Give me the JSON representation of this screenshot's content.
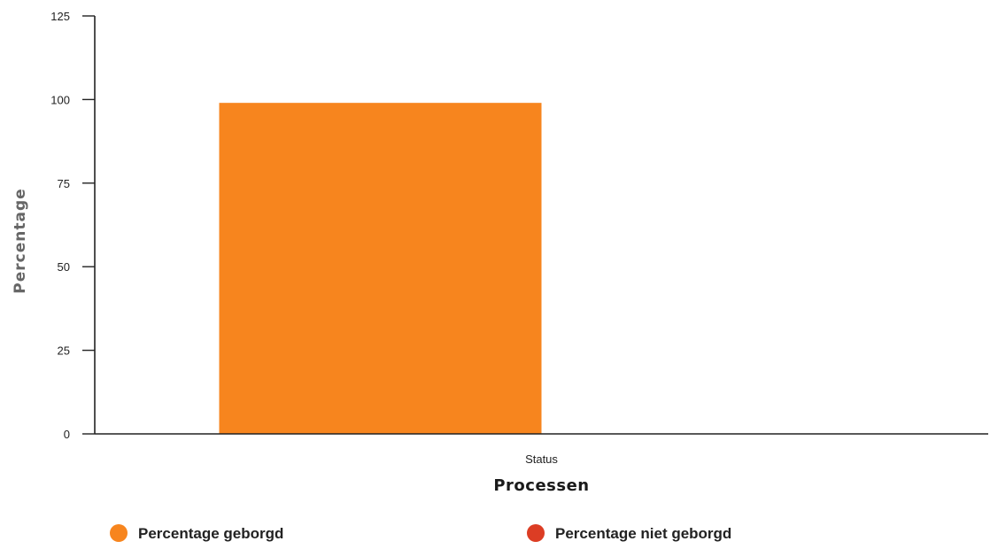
{
  "chart_data": {
    "type": "bar",
    "categories": [
      "Status"
    ],
    "series": [
      {
        "name": "Percentage geborgd",
        "values": [
          99
        ],
        "color": "#f7851e"
      },
      {
        "name": "Percentage niet geborgd",
        "values": [
          0
        ],
        "color": "#dc3d24"
      }
    ],
    "title": "",
    "xlabel": "Processen",
    "ylabel": "Percentage",
    "ylim": [
      0,
      125
    ],
    "yticks": [
      0,
      25,
      50,
      75,
      100,
      125
    ],
    "grid": false,
    "legend_position": "bottom"
  }
}
